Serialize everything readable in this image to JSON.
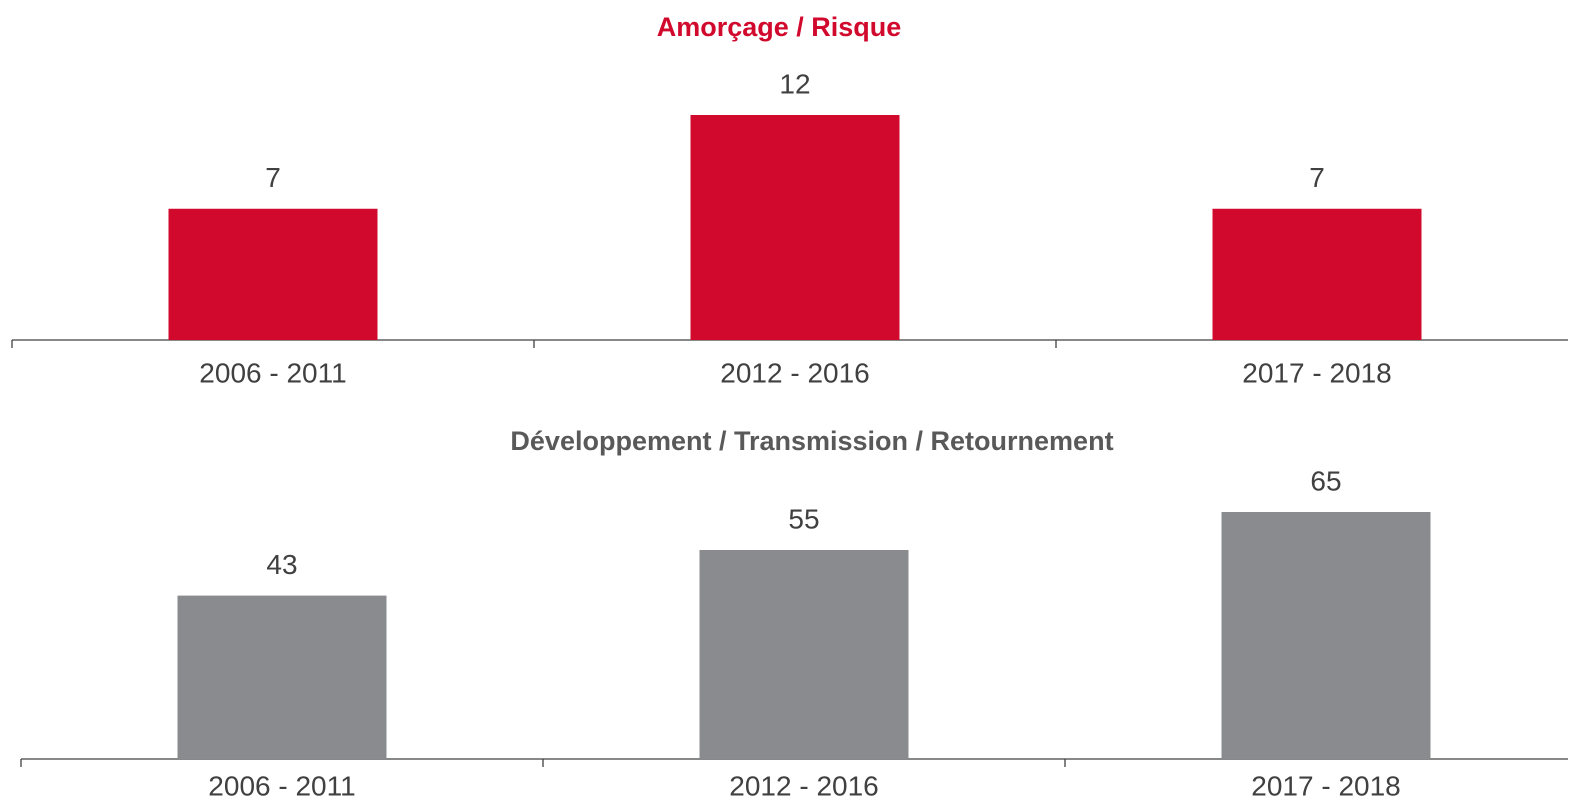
{
  "chart_data": [
    {
      "type": "bar",
      "title": "Amorçage / Risque",
      "title_color": "#d10a2d",
      "categories": [
        "2006 - 2011",
        "2012 - 2016",
        "2017 - 2018"
      ],
      "values": [
        7,
        12,
        7
      ],
      "color": "#d10a2d"
    },
    {
      "type": "bar",
      "title": "Développement / Transmission / Retournement",
      "title_color": "#595959",
      "categories": [
        "2006 - 2011",
        "2012 - 2016",
        "2017 - 2018"
      ],
      "values": [
        43,
        55,
        65
      ],
      "color": "#8a8b8e"
    }
  ]
}
